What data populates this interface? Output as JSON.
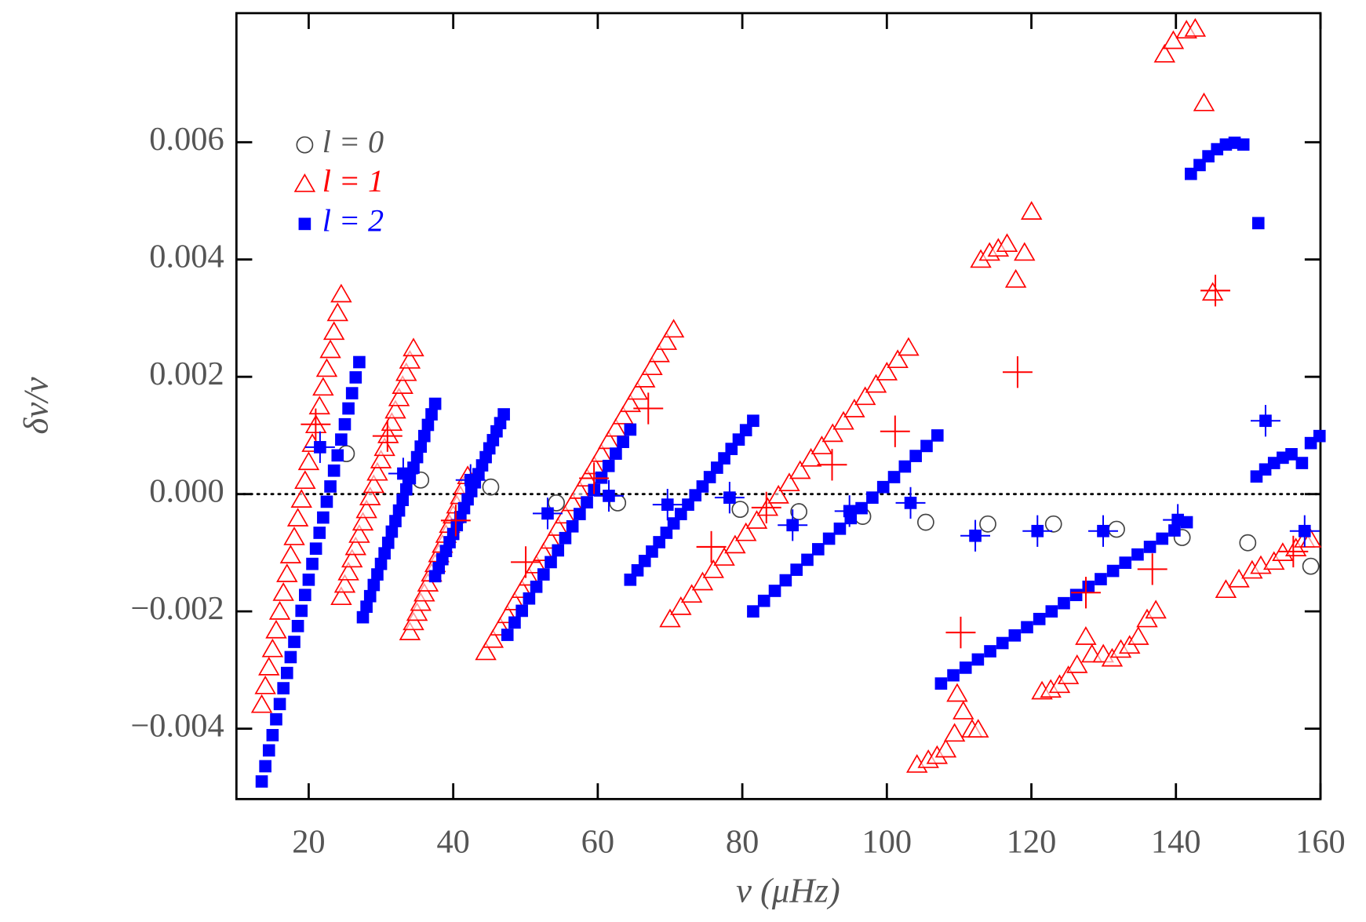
{
  "chart_data": {
    "type": "scatter",
    "x_label": "ν (μHz)",
    "y_label": "δν/ν",
    "xlim": [
      10,
      160
    ],
    "ylim": [
      -0.0052,
      0.0082
    ],
    "xticks": [
      20,
      40,
      60,
      80,
      100,
      120,
      140,
      160
    ],
    "yticks": [
      {
        "value": -0.004,
        "label": "−0.004"
      },
      {
        "value": -0.002,
        "label": "−0.002"
      },
      {
        "value": 0,
        "label": "0.000"
      },
      0.002,
      0.004,
      0.006
    ],
    "reference_line": 0,
    "legend": "upper left",
    "series": [
      {
        "name": "l = 0",
        "color": "#444444",
        "marker": "circle",
        "x": [
          25.21,
          35.5,
          45.19,
          54.27,
          62.75,
          79.7,
          87.82,
          96.66,
          105.38,
          113.97,
          123.06,
          131.78,
          140.86,
          149.94,
          158.66
        ],
        "values": [
          0.00069,
          0.00024,
          0.00012,
          -0.00015,
          -0.00015,
          -0.00026,
          -0.0003,
          -0.00038,
          -0.00048,
          -0.00051,
          -0.00051,
          -0.0006,
          -0.00074,
          -0.00083,
          -0.00123
        ]
      },
      {
        "name": "l = 1",
        "color": "#ff0000",
        "marker": "triangle",
        "x": [
          13.5,
          14,
          14.5,
          15,
          15.5,
          16,
          16.5,
          17,
          17.5,
          18,
          18.5,
          19,
          19.5,
          20,
          20.5,
          21,
          21.5,
          22,
          22.5,
          23,
          23.5,
          24,
          24.5,
          24.5,
          25,
          25.5,
          26,
          26.5,
          27,
          27.5,
          28,
          28.5,
          29,
          29.5,
          30,
          30.5,
          31,
          31.5,
          32,
          32.5,
          33,
          33.5,
          34,
          34.5,
          34,
          34.5,
          35,
          35.5,
          36,
          36.5,
          37,
          37.5,
          38,
          38.5,
          39,
          39.5,
          40,
          40.5,
          41,
          41.5,
          42,
          44.5,
          45.5,
          46.5,
          47.5,
          48.5,
          49.5,
          50.5,
          51.5,
          52.5,
          53.5,
          54.5,
          55.5,
          56.5,
          57.5,
          58.5,
          59.5,
          60.5,
          61.5,
          62.5,
          63.5,
          64.5,
          65.5,
          66.5,
          67.5,
          68.5,
          69.5,
          70.5,
          70,
          71.5,
          73,
          74.5,
          76,
          77.5,
          79,
          80.5,
          82,
          83.5,
          85,
          86.5,
          88,
          89.5,
          91,
          92.5,
          94,
          95.5,
          97,
          98.5,
          100,
          101.5,
          103,
          104.17,
          105.74,
          106.95,
          108.16,
          109.37,
          109.73,
          110.58,
          111.79,
          112.64,
          113.0,
          114.21,
          115.42,
          116.63,
          117.84,
          119.05,
          120.02,
          121.47,
          122.68,
          123.9,
          125.11,
          126.32,
          127.53,
          128.38,
          129.95,
          131.17,
          132.38,
          133.59,
          134.8,
          136.01,
          137.22,
          138.43,
          139.64,
          141.46,
          142.67,
          143.88,
          145.09,
          146.91,
          148.72,
          150.54,
          151.75,
          153.57,
          154.78,
          156.6,
          157.81,
          158.66
        ],
        "values": [
          -0.0036,
          -0.00328,
          -0.00296,
          -0.00265,
          -0.00233,
          -0.00201,
          -0.00169,
          -0.00137,
          -0.00105,
          -0.00074,
          -0.00042,
          -0.0001,
          0.00022,
          0.00054,
          0.00085,
          0.00117,
          0.00149,
          0.00181,
          0.00213,
          0.00245,
          0.00276,
          0.00308,
          0.0034,
          -0.00176,
          -0.00155,
          -0.00134,
          -0.00112,
          -0.00091,
          -0.0007,
          -0.00049,
          -0.00028,
          -6e-05,
          0.00015,
          0.00036,
          0.00057,
          0.00078,
          0.001,
          0.00121,
          0.00142,
          0.00163,
          0.00184,
          0.00206,
          0.00227,
          0.00248,
          -0.00236,
          -0.00219,
          -0.00203,
          -0.00186,
          -0.0017,
          -0.00153,
          -0.00136,
          -0.0012,
          -0.00103,
          -0.00087,
          -0.0007,
          -0.00053,
          -0.00037,
          -0.0002,
          -4e-05,
          0.00013,
          0.0003,
          -0.0027,
          -0.00249,
          -0.00228,
          -0.00207,
          -0.00185,
          -0.00164,
          -0.00143,
          -0.00122,
          -0.00101,
          -0.0008,
          -0.00058,
          -0.00037,
          -0.00016,
          5e-05,
          0.00026,
          0.00047,
          0.00068,
          0.0009,
          0.00111,
          0.00132,
          0.00153,
          0.00174,
          0.00195,
          0.00216,
          0.00238,
          0.00259,
          0.0028,
          -0.00214,
          -0.00193,
          -0.00172,
          -0.00151,
          -0.0013,
          -0.00109,
          -0.00088,
          -0.00067,
          -0.00046,
          -0.00024,
          -3e-05,
          0.00018,
          0.00039,
          0.0006,
          0.00081,
          0.00102,
          0.00123,
          0.00144,
          0.00165,
          0.00186,
          0.00207,
          0.00228,
          0.00249,
          -0.00462,
          -0.00454,
          -0.00447,
          -0.00436,
          -0.00409,
          -0.00341,
          -0.00371,
          -0.00402,
          -0.00402,
          0.00399,
          0.00411,
          0.00418,
          0.00426,
          0.00365,
          0.00411,
          0.00481,
          -0.00337,
          -0.00334,
          -0.00326,
          -0.00311,
          -0.00292,
          -0.00244,
          -0.00274,
          -0.00274,
          -0.00281,
          -0.00266,
          -0.00259,
          -0.00244,
          -0.00214,
          -0.00199,
          0.00749,
          0.00772,
          0.0079,
          0.00793,
          0.00666,
          0.00343,
          -0.00164,
          -0.00146,
          -0.00131,
          -0.00123,
          -0.00116,
          -0.00101,
          -0.00093,
          -0.00078,
          -0.00078
        ]
      },
      {
        "name": "l = 2",
        "color": "#0000ff",
        "marker": "square",
        "x": [
          13.5,
          14,
          14.5,
          15,
          15.5,
          16,
          16.5,
          17,
          17.5,
          18,
          18.5,
          19,
          19.5,
          20,
          20.5,
          21,
          21.5,
          22,
          22.5,
          23,
          23.5,
          24,
          24.5,
          25,
          25.5,
          26,
          26.5,
          27,
          27.5,
          28,
          28.5,
          29,
          29.5,
          30,
          30.5,
          31,
          31.5,
          32,
          32.5,
          33,
          33.5,
          34,
          34.5,
          35,
          35.5,
          36,
          36.5,
          37,
          37.5,
          37.5,
          38,
          38.5,
          39,
          39.5,
          40,
          40.5,
          41,
          41.5,
          42,
          42.5,
          43,
          43.5,
          44,
          44.5,
          45,
          45.5,
          46,
          46.5,
          47,
          47.5,
          48.5,
          49.5,
          50.5,
          51.5,
          52.5,
          53.5,
          54.5,
          55.5,
          56.5,
          57.5,
          58.5,
          59.5,
          60.5,
          61.5,
          62.5,
          63.5,
          64.5,
          64.5,
          65.5,
          66.5,
          67.5,
          68.5,
          69.5,
          70.5,
          71.5,
          72.5,
          73.5,
          74.5,
          75.5,
          76.5,
          77.5,
          78.5,
          79.5,
          80.5,
          81.5,
          81.5,
          83,
          84.5,
          86,
          87.5,
          89,
          90.5,
          92,
          93.5,
          95,
          96.5,
          98,
          99.5,
          101,
          102.5,
          104,
          105.5,
          107,
          107.5,
          109.2,
          110.9,
          112.6,
          114.3,
          116,
          117.7,
          119.4,
          121.1,
          122.8,
          124.5,
          126.2,
          127.9,
          129.6,
          131.3,
          133,
          134.7,
          136.4,
          138.1,
          139.8,
          141.5,
          142.07,
          143.28,
          144.49,
          145.7,
          146.91,
          148.12,
          149.33,
          151.4,
          151.15,
          152.36,
          153.57,
          154.78,
          155.99,
          157.44,
          158.66,
          159.87
        ],
        "values": [
          -0.0049,
          -0.00464,
          -0.00437,
          -0.00411,
          -0.00384,
          -0.00358,
          -0.00331,
          -0.00305,
          -0.00278,
          -0.00252,
          -0.00225,
          -0.00199,
          -0.00172,
          -0.00146,
          -0.00119,
          -0.00093,
          -0.00066,
          -0.0004,
          -0.00013,
          0.00013,
          0.0004,
          0.00066,
          0.00093,
          0.00119,
          0.00146,
          0.00172,
          0.00199,
          0.00225,
          -0.0021,
          -0.00192,
          -0.00174,
          -0.00155,
          -0.00137,
          -0.00119,
          -0.00101,
          -0.00083,
          -0.00064,
          -0.00046,
          -0.00028,
          -0.0001,
          8e-05,
          0.00027,
          0.00045,
          0.00063,
          0.00081,
          0.00099,
          0.00118,
          0.00136,
          0.00154,
          -0.0014,
          -0.00126,
          -0.00111,
          -0.00097,
          -0.00082,
          -0.00068,
          -0.00053,
          -0.00039,
          -0.00024,
          -9e-05,
          5e-05,
          0.0002,
          0.00034,
          0.00049,
          0.00063,
          0.00078,
          0.00092,
          0.00107,
          0.00121,
          0.00136,
          -0.0024,
          -0.00219,
          -0.00199,
          -0.00178,
          -0.00158,
          -0.00137,
          -0.00116,
          -0.00096,
          -0.00075,
          -0.00055,
          -0.00034,
          -0.00014,
          7e-05,
          0.00028,
          0.00048,
          0.00069,
          0.00089,
          0.0011,
          -0.00146,
          -0.0013,
          -0.00114,
          -0.00098,
          -0.00082,
          -0.00066,
          -0.0005,
          -0.00034,
          -0.00018,
          -2e-05,
          0.00013,
          0.00029,
          0.00045,
          0.00061,
          0.00077,
          0.00093,
          0.00109,
          0.00125,
          -0.002,
          -0.00182,
          -0.00165,
          -0.00147,
          -0.00129,
          -0.00112,
          -0.00094,
          -0.00076,
          -0.00059,
          -0.00041,
          -0.00024,
          -6e-05,
          0.00012,
          0.00029,
          0.00047,
          0.00065,
          0.00082,
          0.001,
          -0.00323,
          -0.00309,
          -0.00296,
          -0.00282,
          -0.00268,
          -0.00254,
          -0.00241,
          -0.00227,
          -0.00213,
          -0.002,
          -0.00186,
          -0.00172,
          -0.00158,
          -0.00145,
          -0.00131,
          -0.00117,
          -0.00103,
          -0.0009,
          -0.00076,
          -0.00062,
          -0.00048,
          0.00546,
          0.00561,
          0.00576,
          0.00588,
          0.00596,
          0.00599,
          0.00596,
          0.00462,
          0.0003,
          0.00042,
          0.00053,
          0.00062,
          0.00068,
          0.00053,
          0.00087,
          0.00099
        ]
      },
      {
        "color": "#ff0000",
        "marker": "plus",
        "x": [
          20.97,
          30.9,
          40.35,
          50.03,
          59.48,
          66.99,
          75.71,
          83.33,
          92.42,
          101.14,
          110.22,
          118.09,
          127.54,
          136.74,
          145.46,
          156.24
        ],
        "values": [
          0.00119,
          0.00099,
          -0.00045,
          -0.00116,
          0.00027,
          0.00146,
          -0.0009,
          -0.00023,
          0.0005,
          0.00107,
          -0.00236,
          0.00208,
          -0.00168,
          -0.00128,
          0.00347,
          -0.00098
        ]
      },
      {
        "color": "#0000ff",
        "marker": "square-plus",
        "x": [
          21.57,
          33.08,
          42.4,
          53.06,
          61.53,
          69.65,
          78.24,
          86.96,
          94.83,
          103.28,
          112.24,
          120.84,
          129.93,
          140.26,
          152.4,
          157.81
        ],
        "values": [
          0.0008,
          0.00035,
          0.00024,
          -0.00033,
          -3e-05,
          -0.00018,
          -6e-05,
          -0.00053,
          -0.00029,
          -0.00015,
          -0.00071,
          -0.00063,
          -0.00063,
          -0.00044,
          0.00125,
          -0.00063
        ]
      }
    ]
  }
}
